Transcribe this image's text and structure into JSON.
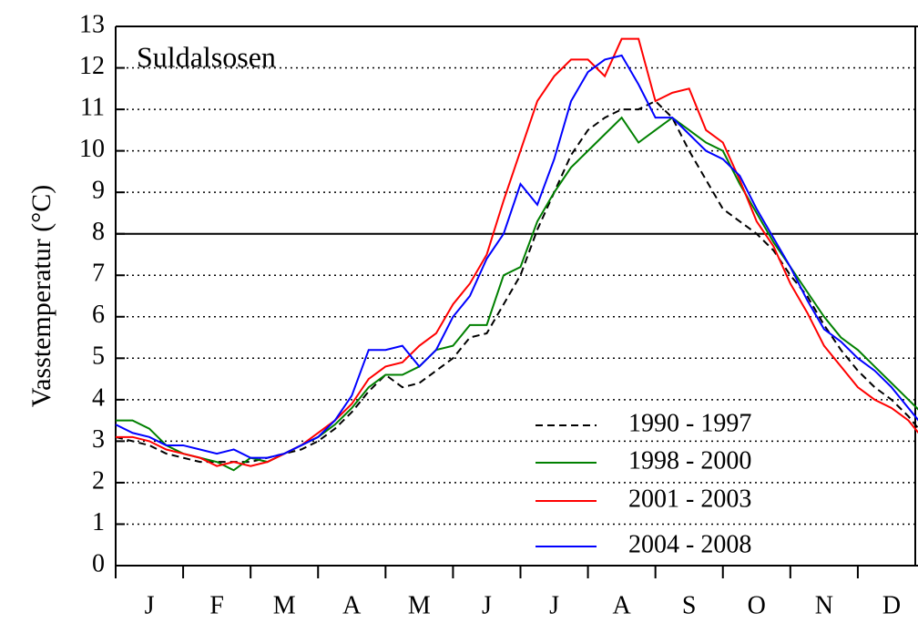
{
  "chart_data": {
    "type": "line",
    "title": "Suldalsosen",
    "ylabel": "Vasstemperatur (°C)",
    "categories": [
      "J",
      "F",
      "M",
      "A",
      "M",
      "J",
      "J",
      "A",
      "S",
      "O",
      "N",
      "D"
    ],
    "x": [
      0,
      0.25,
      0.5,
      0.75,
      1,
      1.25,
      1.5,
      1.75,
      2,
      2.25,
      2.5,
      2.75,
      3,
      3.25,
      3.5,
      3.75,
      4,
      4.25,
      4.5,
      4.75,
      5,
      5.25,
      5.5,
      5.75,
      6,
      6.25,
      6.5,
      6.75,
      7,
      7.25,
      7.5,
      7.75,
      8,
      8.25,
      8.5,
      8.75,
      9,
      9.25,
      9.5,
      9.75,
      10,
      10.25,
      10.5,
      10.75,
      11,
      11.25,
      11.5,
      11.75,
      12
    ],
    "xlim": [
      0,
      12
    ],
    "ylim": [
      0,
      13
    ],
    "yticks": [
      0,
      1,
      2,
      3,
      4,
      5,
      6,
      7,
      8,
      9,
      10,
      11,
      12,
      13
    ],
    "grid": true,
    "hline": 8,
    "legend": "lower right",
    "series": [
      {
        "name": "1990 - 1997",
        "color": "#000000",
        "dash": true,
        "values": [
          3.1,
          3.0,
          2.9,
          2.7,
          2.6,
          2.5,
          2.5,
          2.5,
          2.5,
          2.6,
          2.7,
          2.8,
          3.0,
          3.3,
          3.7,
          4.2,
          4.6,
          4.3,
          4.4,
          4.7,
          5.0,
          5.5,
          5.6,
          6.3,
          7.0,
          8.1,
          9.0,
          9.9,
          10.5,
          10.8,
          11.0,
          11.0,
          11.2,
          10.8,
          10.0,
          9.3,
          8.6,
          8.3,
          8.0,
          7.6,
          7.0,
          6.5,
          5.8,
          5.2,
          4.7,
          4.3,
          4.0,
          3.6,
          3.1
        ]
      },
      {
        "name": "1998 - 2000",
        "color": "#008000",
        "dash": false,
        "values": [
          3.5,
          3.5,
          3.3,
          2.9,
          2.7,
          2.6,
          2.5,
          2.3,
          2.6,
          2.5,
          2.7,
          2.9,
          3.1,
          3.4,
          3.8,
          4.3,
          4.6,
          4.6,
          4.8,
          5.2,
          5.3,
          5.8,
          5.8,
          7.0,
          7.2,
          8.3,
          9.0,
          9.6,
          10.0,
          10.4,
          10.8,
          10.2,
          10.5,
          10.8,
          10.5,
          10.2,
          10.0,
          9.2,
          8.5,
          7.8,
          7.2,
          6.6,
          6.0,
          5.5,
          5.2,
          4.8,
          4.4,
          4.0,
          3.6
        ]
      },
      {
        "name": "2001 - 2003",
        "color": "#ff0000",
        "dash": false,
        "values": [
          3.1,
          3.1,
          3.0,
          2.8,
          2.7,
          2.6,
          2.4,
          2.5,
          2.4,
          2.5,
          2.7,
          2.9,
          3.2,
          3.5,
          3.9,
          4.5,
          4.8,
          4.9,
          5.3,
          5.6,
          6.3,
          6.8,
          7.5,
          8.8,
          10.0,
          11.2,
          11.8,
          12.2,
          12.2,
          11.8,
          12.7,
          12.7,
          11.2,
          11.4,
          11.5,
          10.5,
          10.2,
          9.3,
          8.3,
          7.7,
          6.8,
          6.1,
          5.3,
          4.8,
          4.3,
          4.0,
          3.8,
          3.5,
          3.0
        ]
      },
      {
        "name": "2004 - 2008",
        "color": "#0000ff",
        "dash": false,
        "values": [
          3.4,
          3.2,
          3.1,
          2.9,
          2.9,
          2.8,
          2.7,
          2.8,
          2.6,
          2.6,
          2.7,
          2.9,
          3.1,
          3.5,
          4.1,
          5.2,
          5.2,
          5.3,
          4.8,
          5.2,
          6.0,
          6.5,
          7.4,
          8.0,
          9.2,
          8.7,
          9.8,
          11.2,
          11.9,
          12.2,
          12.3,
          11.6,
          10.8,
          10.8,
          10.4,
          10.0,
          9.8,
          9.4,
          8.6,
          7.9,
          7.2,
          6.4,
          5.7,
          5.4,
          5.0,
          4.7,
          4.3,
          3.8,
          3.3
        ]
      }
    ]
  }
}
